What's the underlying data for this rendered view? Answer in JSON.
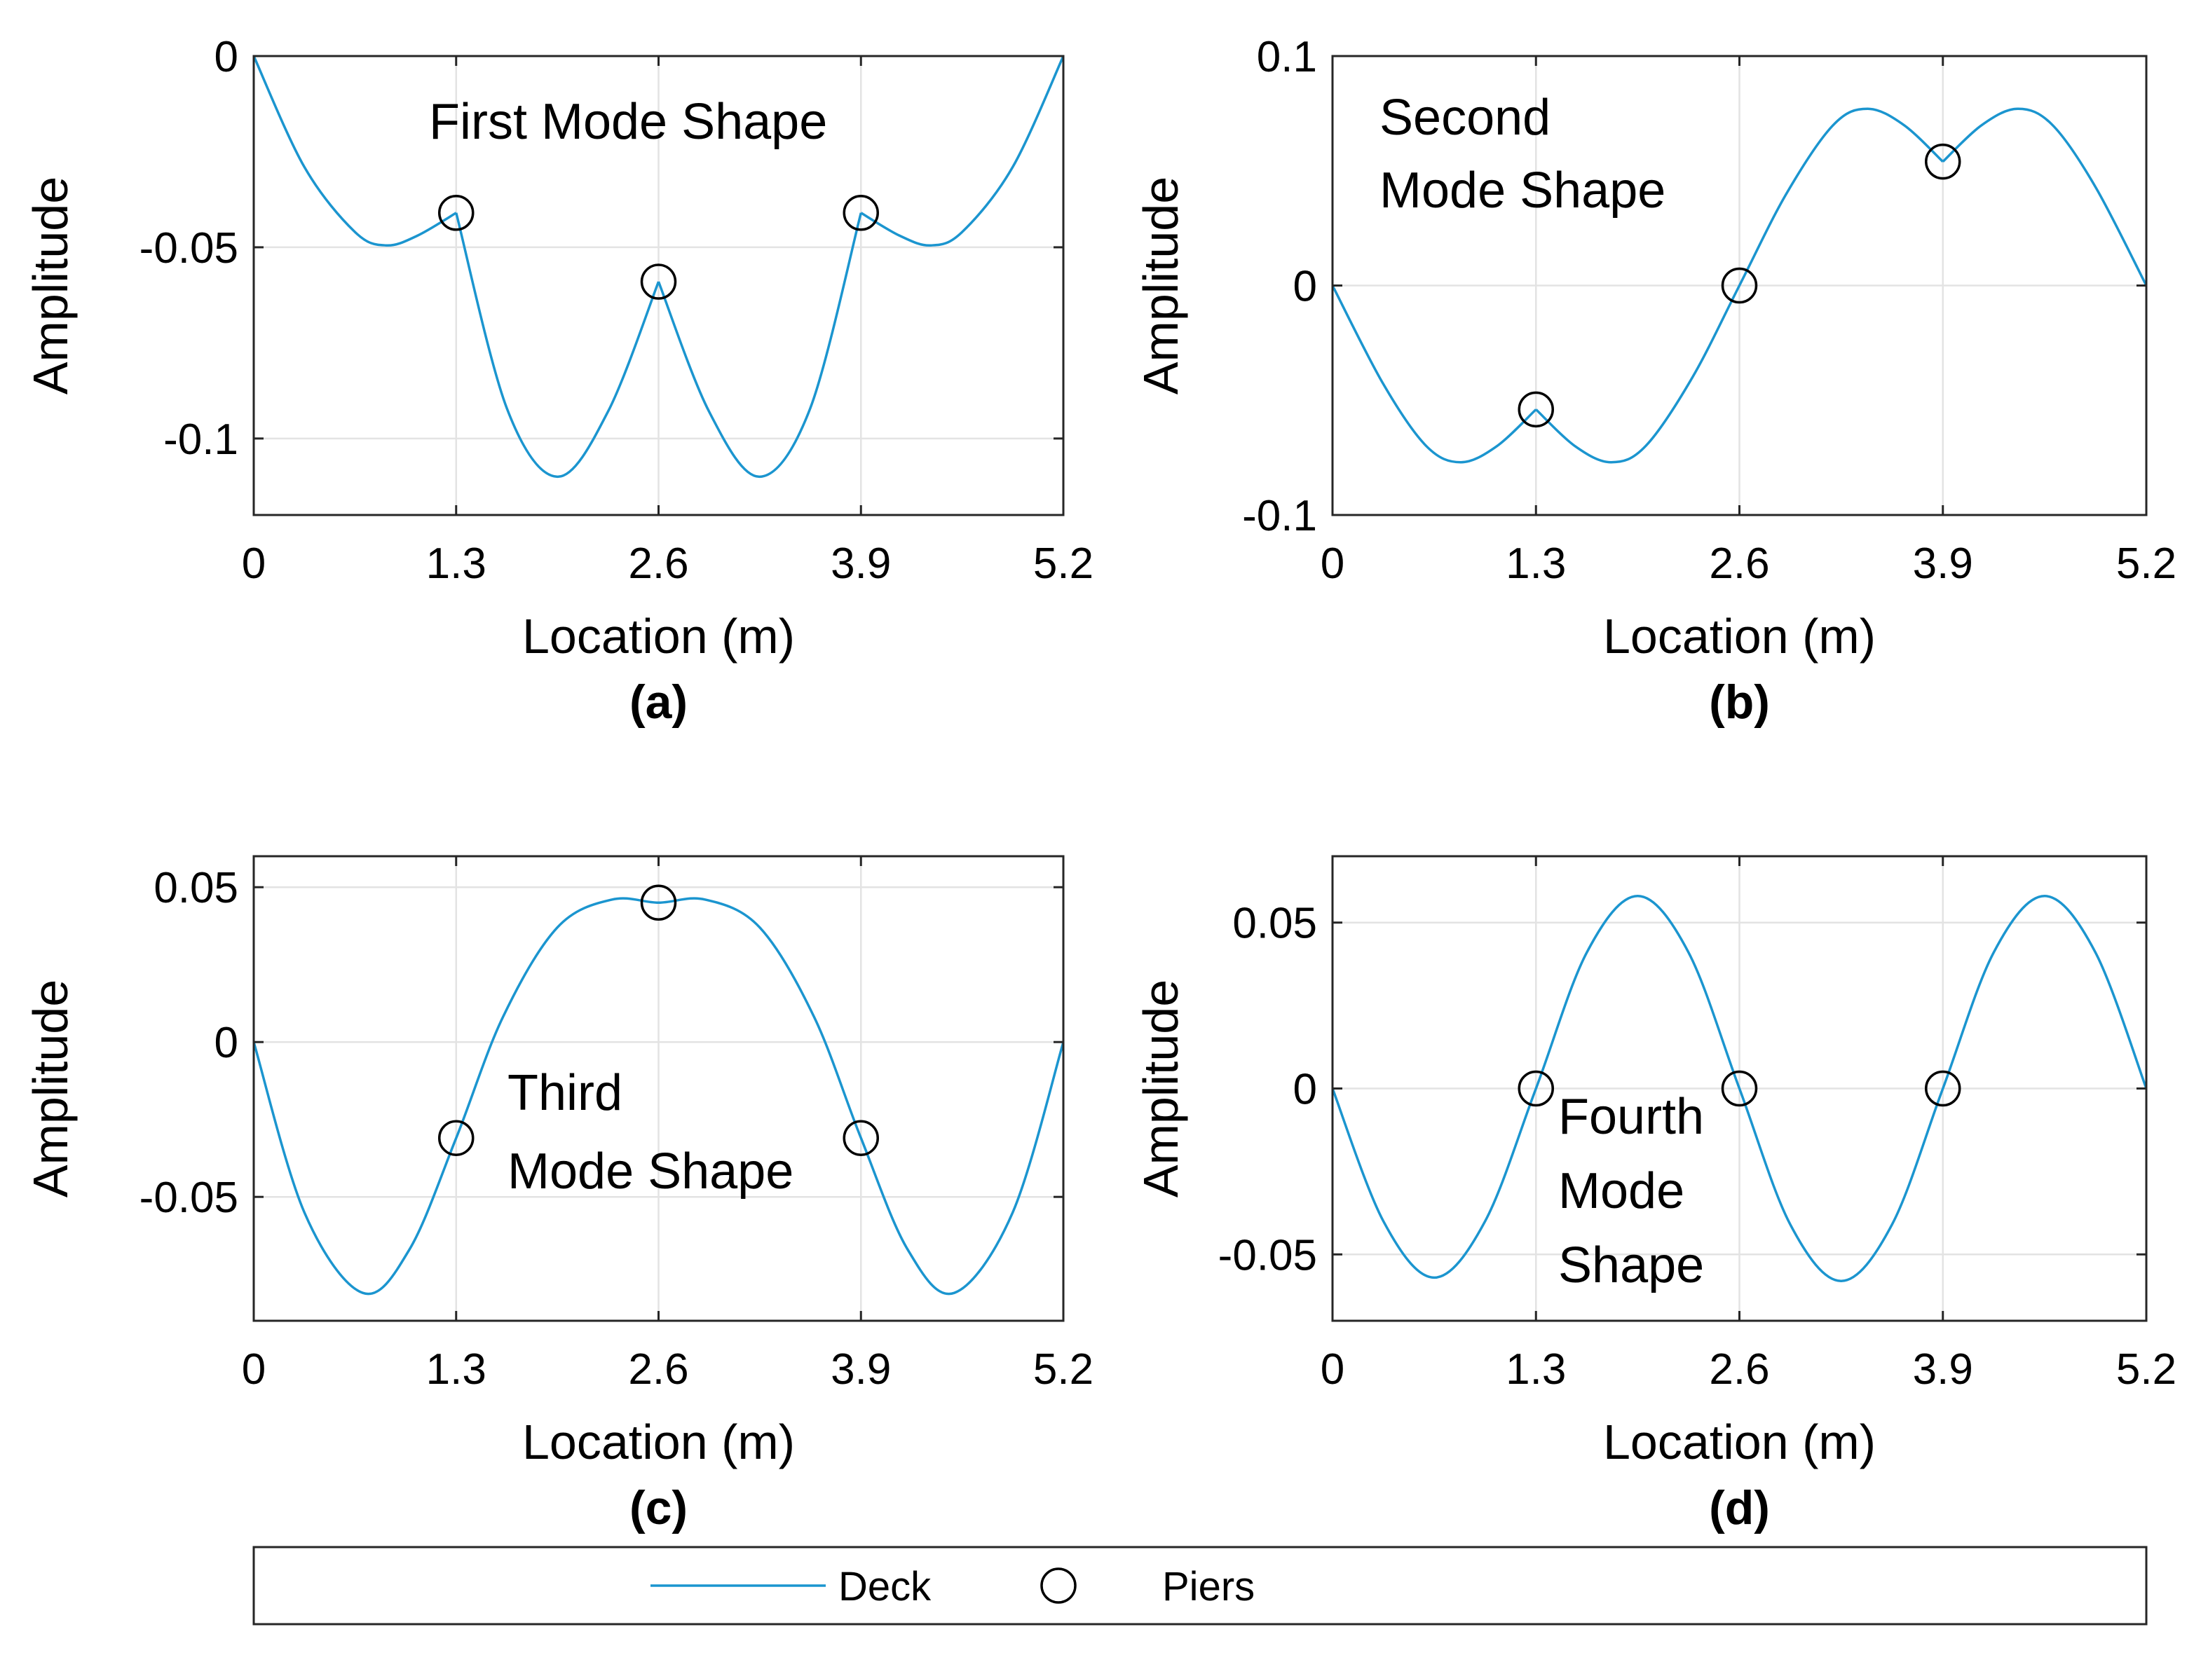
{
  "colors": {
    "deck": "#1b95cf",
    "pier": "#000000"
  },
  "legend": {
    "deck_label": "Deck",
    "piers_label": "Piers"
  },
  "chart_data": [
    {
      "type": "line",
      "panel": "(a)",
      "title": "First Mode Shape",
      "annotation_lines": [
        "First Mode Shape"
      ],
      "xlabel": "Location (m)",
      "ylabel": "Amplitude",
      "xlim": [
        0,
        5.2
      ],
      "ylim": [
        -0.12,
        0
      ],
      "xticks": [
        0,
        1.3,
        2.6,
        3.9,
        5.2
      ],
      "xtick_labels": [
        "0",
        "1.3",
        "2.6",
        "3.9",
        "5.2"
      ],
      "yticks": [
        -0.1,
        -0.05,
        0
      ],
      "ytick_labels": [
        "-0.1",
        "-0.05",
        "0"
      ],
      "grid": true,
      "series": [
        {
          "name": "Deck",
          "x": [
            0,
            0.325,
            0.65,
            0.85,
            1.05,
            1.3,
            1.625,
            1.95,
            2.275,
            2.6,
            2.925,
            3.25,
            3.575,
            3.9,
            4.15,
            4.35,
            4.55,
            4.875,
            5.2
          ],
          "values": [
            0,
            -0.029,
            -0.046,
            -0.0495,
            -0.047,
            -0.041,
            -0.092,
            -0.11,
            -0.093,
            -0.059,
            -0.093,
            -0.11,
            -0.092,
            -0.041,
            -0.047,
            -0.0495,
            -0.046,
            -0.029,
            0
          ]
        },
        {
          "name": "Piers",
          "x": [
            1.3,
            2.6,
            3.9
          ],
          "values": [
            -0.041,
            -0.059,
            -0.041
          ]
        }
      ]
    },
    {
      "type": "line",
      "panel": "(b)",
      "title": "Second Mode Shape",
      "annotation_lines": [
        "Second",
        "Mode Shape"
      ],
      "xlabel": "Location (m)",
      "ylabel": "Amplitude",
      "xlim": [
        0,
        5.2
      ],
      "ylim": [
        -0.1,
        0.1
      ],
      "xticks": [
        0,
        1.3,
        2.6,
        3.9,
        5.2
      ],
      "xtick_labels": [
        "0",
        "1.3",
        "2.6",
        "3.9",
        "5.2"
      ],
      "yticks": [
        -0.1,
        0,
        0.1
      ],
      "ytick_labels": [
        "-0.1",
        "0",
        "0.1"
      ],
      "grid": true,
      "series": [
        {
          "name": "Deck",
          "x": [
            0,
            0.325,
            0.6,
            0.82,
            1.05,
            1.3,
            1.55,
            1.78,
            2.0,
            2.3,
            2.6,
            2.9,
            3.2,
            3.42,
            3.65,
            3.9,
            4.15,
            4.38,
            4.6,
            4.875,
            5.2
          ],
          "values": [
            0,
            -0.043,
            -0.07,
            -0.077,
            -0.07,
            -0.054,
            -0.07,
            -0.077,
            -0.07,
            -0.04,
            0,
            0.04,
            0.07,
            0.077,
            0.07,
            0.054,
            0.07,
            0.077,
            0.07,
            0.043,
            0
          ]
        },
        {
          "name": "Piers",
          "x": [
            1.3,
            2.6,
            3.9
          ],
          "values": [
            -0.054,
            0,
            0.054
          ]
        }
      ]
    },
    {
      "type": "line",
      "panel": "(c)",
      "title": "Third Mode Shape",
      "annotation_lines": [
        "Third",
        "Mode Shape"
      ],
      "xlabel": "Location (m)",
      "ylabel": "Amplitude",
      "xlim": [
        0,
        5.2
      ],
      "ylim": [
        -0.09,
        0.06
      ],
      "xticks": [
        0,
        1.3,
        2.6,
        3.9,
        5.2
      ],
      "xtick_labels": [
        "0",
        "1.3",
        "2.6",
        "3.9",
        "5.2"
      ],
      "yticks": [
        -0.05,
        0,
        0.05
      ],
      "ytick_labels": [
        "-0.05",
        "0",
        "0.05"
      ],
      "grid": true,
      "series": [
        {
          "name": "Deck",
          "x": [
            0,
            0.325,
            0.7,
            1.0,
            1.3,
            1.6,
            1.95,
            2.3,
            2.6,
            2.9,
            3.25,
            3.6,
            3.9,
            4.2,
            4.5,
            4.875,
            5.2
          ],
          "values": [
            0,
            -0.055,
            -0.081,
            -0.067,
            -0.031,
            0.008,
            0.037,
            0.046,
            0.045,
            0.046,
            0.037,
            0.008,
            -0.031,
            -0.067,
            -0.081,
            -0.055,
            0
          ]
        },
        {
          "name": "Piers",
          "x": [
            1.3,
            2.6,
            3.9
          ],
          "values": [
            -0.031,
            0.045,
            -0.031
          ]
        }
      ]
    },
    {
      "type": "line",
      "panel": "(d)",
      "title": "Fourth Mode Shape",
      "annotation_lines": [
        "Fourth",
        "Mode",
        "Shape"
      ],
      "xlabel": "Location (m)",
      "ylabel": "Amplitude",
      "xlim": [
        0,
        5.2
      ],
      "ylim": [
        -0.07,
        0.07
      ],
      "xticks": [
        0,
        1.3,
        2.6,
        3.9,
        5.2
      ],
      "xtick_labels": [
        "0",
        "1.3",
        "2.6",
        "3.9",
        "5.2"
      ],
      "yticks": [
        -0.05,
        0,
        0.05
      ],
      "ytick_labels": [
        "-0.05",
        "0",
        "0.05"
      ],
      "grid": true,
      "series": [
        {
          "name": "Deck",
          "x": [
            0,
            0.325,
            0.65,
            0.975,
            1.3,
            1.625,
            1.95,
            2.275,
            2.6,
            2.925,
            3.25,
            3.575,
            3.9,
            4.225,
            4.55,
            4.875,
            5.2
          ],
          "values": [
            0,
            -0.04,
            -0.057,
            -0.04,
            0,
            0.041,
            0.058,
            0.041,
            0,
            -0.041,
            -0.058,
            -0.041,
            0,
            0.041,
            0.058,
            0.041,
            0
          ]
        },
        {
          "name": "Piers",
          "x": [
            1.3,
            2.6,
            3.9
          ],
          "values": [
            0,
            0,
            0
          ]
        }
      ]
    }
  ]
}
